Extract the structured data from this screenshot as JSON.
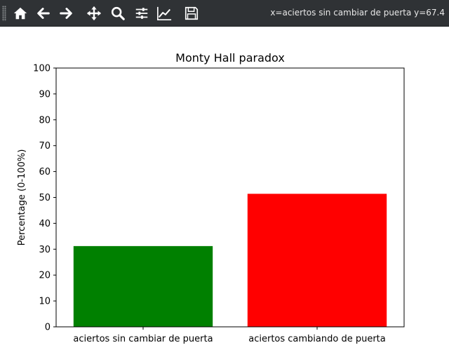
{
  "toolbar": {
    "buttons": [
      {
        "name": "home-icon",
        "label": "Home"
      },
      {
        "name": "back-icon",
        "label": "Back"
      },
      {
        "name": "forward-icon",
        "label": "Forward"
      },
      {
        "name": "pan-icon",
        "label": "Pan"
      },
      {
        "name": "zoom-icon",
        "label": "Zoom"
      },
      {
        "name": "configure-subplots-icon",
        "label": "Subplots"
      },
      {
        "name": "edit-axis-icon",
        "label": "Customize"
      },
      {
        "name": "save-icon",
        "label": "Save"
      }
    ],
    "coords": "x=aciertos sin cambiar de puerta y=67.4"
  },
  "chart_data": {
    "type": "bar",
    "title": "Monty Hall paradox",
    "xlabel": "",
    "ylabel": "Percentage (0-100%)",
    "categories": [
      "aciertos sin cambiar de puerta",
      "aciertos cambiando de puerta"
    ],
    "values": [
      31.2,
      51.4
    ],
    "colors": [
      "#008000",
      "#ff0000"
    ],
    "ylim": [
      0,
      100
    ],
    "yticks": [
      0,
      10,
      20,
      30,
      40,
      50,
      60,
      70,
      80,
      90,
      100
    ],
    "grid": false,
    "legend": "none"
  }
}
